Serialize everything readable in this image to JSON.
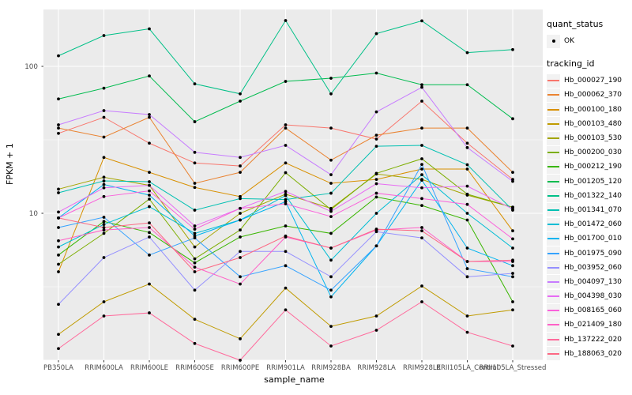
{
  "chart_data": {
    "type": "line",
    "title": "",
    "xlabel": "sample_name",
    "ylabel": "FPKM + 1",
    "y_scale": "log10",
    "ylim": [
      0.97,
      240
    ],
    "y_major_ticks": [
      10,
      100
    ],
    "y_major_gridlines": [
      1,
      10,
      100
    ],
    "y_minor_gridlines": [
      3.162,
      31.62
    ],
    "grid": true,
    "legend_position": "right",
    "point_shape": "black-dot",
    "categories": [
      "PB350LA",
      "RRIM600LA",
      "RRIM600LE",
      "RRIM600SE",
      "RRIM600PE",
      "RRIM901LA",
      "RRIM928BA",
      "RRIM928LA",
      "RRIM928LE",
      "RRII105LA_Control",
      "RRII105LA_Stressed"
    ],
    "series": [
      {
        "name": "Hb_000027_190",
        "color": "#F8766D",
        "values": [
          35,
          45,
          30,
          22,
          21,
          40,
          38,
          32,
          58,
          30,
          17
        ]
      },
      {
        "name": "Hb_000062_370",
        "color": "#EA8331",
        "values": [
          38,
          33,
          45,
          16,
          19,
          38,
          23,
          34,
          38,
          38,
          19
        ]
      },
      {
        "name": "Hb_000100_180",
        "color": "#D89000",
        "values": [
          4.0,
          24,
          19,
          15,
          13,
          22,
          16,
          17,
          20,
          20,
          7.6
        ]
      },
      {
        "name": "Hb_000103_480",
        "color": "#C09B00",
        "values": [
          1.5,
          2.5,
          3.3,
          1.9,
          1.4,
          3.1,
          1.7,
          2.0,
          3.2,
          2.0,
          2.2
        ]
      },
      {
        "name": "Hb_000103_530",
        "color": "#A3A500",
        "values": [
          14.6,
          17.6,
          15.5,
          5.9,
          10.0,
          13.5,
          10.8,
          18.5,
          17.0,
          13.3,
          11.0
        ]
      },
      {
        "name": "Hb_000200_030",
        "color": "#7CAE00",
        "values": [
          4.5,
          7.3,
          12.5,
          4.9,
          7.7,
          18.9,
          10.6,
          18.7,
          23.5,
          13.5,
          11.0
        ]
      },
      {
        "name": "Hb_000212_190",
        "color": "#39B600",
        "values": [
          5.2,
          8.8,
          7.4,
          4.6,
          6.9,
          8.2,
          7.3,
          12.9,
          11.3,
          9.0,
          2.5
        ]
      },
      {
        "name": "Hb_001205_120",
        "color": "#00BB4E",
        "values": [
          60,
          71,
          86,
          42,
          58,
          79,
          83,
          90,
          75,
          75,
          44
        ]
      },
      {
        "name": "Hb_001322_140",
        "color": "#00C087",
        "values": [
          118,
          162,
          180,
          76,
          65,
          205,
          65,
          167,
          204,
          124,
          130
        ]
      },
      {
        "name": "Hb_001341_070",
        "color": "#00C0B2",
        "values": [
          13.8,
          16.6,
          16.4,
          10.5,
          12.6,
          12.4,
          13.7,
          28.6,
          29,
          21.4,
          10.5
        ]
      },
      {
        "name": "Hb_001472_060",
        "color": "#00BDD4",
        "values": [
          5.9,
          8.4,
          11.1,
          7.3,
          9.0,
          13.2,
          4.8,
          10.0,
          18.3,
          10.0,
          5.8
        ]
      },
      {
        "name": "Hb_001700_010",
        "color": "#00B4EF",
        "values": [
          9.3,
          15.7,
          13.3,
          7.0,
          9.0,
          12.0,
          2.7,
          6.0,
          16.8,
          5.8,
          4.4
        ]
      },
      {
        "name": "Hb_001975_090",
        "color": "#35A2FF",
        "values": [
          8.0,
          9.4,
          5.2,
          6.8,
          3.7,
          4.4,
          3.0,
          6.0,
          21.5,
          4.2,
          3.7
        ]
      },
      {
        "name": "Hb_003952_060",
        "color": "#9590FF",
        "values": [
          2.4,
          5.0,
          6.9,
          3.0,
          5.5,
          5.5,
          3.7,
          7.5,
          6.8,
          3.7,
          3.9
        ]
      },
      {
        "name": "Hb_004097_130",
        "color": "#C77CFF",
        "values": [
          40,
          50,
          47,
          26,
          24,
          29,
          18.3,
          49,
          72,
          28,
          16.5
        ]
      },
      {
        "name": "Hb_004398_030",
        "color": "#E76BF3",
        "values": [
          10.2,
          14.9,
          15.5,
          8.2,
          10.8,
          14.1,
          10.3,
          15.9,
          14.9,
          15.3,
          10.7
        ]
      },
      {
        "name": "Hb_008165_060",
        "color": "#FA62DB",
        "values": [
          9.3,
          13.0,
          14.2,
          7.8,
          10.8,
          11.6,
          9.5,
          13.7,
          12.6,
          11.5,
          6.7
        ]
      },
      {
        "name": "Hb_021409_180",
        "color": "#FF61C7",
        "values": [
          6.5,
          7.7,
          8.0,
          4.3,
          3.3,
          6.9,
          5.8,
          7.7,
          8.0,
          4.7,
          4.7
        ]
      },
      {
        "name": "Hb_137222_020",
        "color": "#FF6B9C",
        "values": [
          1.2,
          2.0,
          2.1,
          1.3,
          1.0,
          2.2,
          1.25,
          1.6,
          2.5,
          1.55,
          1.25
        ]
      },
      {
        "name": "Hb_188063_020",
        "color": "#FC6883",
        "values": [
          9.3,
          8.0,
          8.6,
          4.0,
          5.0,
          7.0,
          5.8,
          7.8,
          7.6,
          4.7,
          4.8
        ]
      }
    ],
    "legend": {
      "quant_status_title": "quant_status",
      "quant_status_items": [
        {
          "label": "OK",
          "shape": "black-dot"
        }
      ],
      "tracking_title": "tracking_id"
    }
  },
  "style": {
    "panel_bg": "#EBEBEB",
    "grid_color": "#FFFFFF",
    "tick_label_color": "#4D4D4D",
    "point_color": "#000000",
    "legend_key_bg": "#F2F2F2"
  }
}
